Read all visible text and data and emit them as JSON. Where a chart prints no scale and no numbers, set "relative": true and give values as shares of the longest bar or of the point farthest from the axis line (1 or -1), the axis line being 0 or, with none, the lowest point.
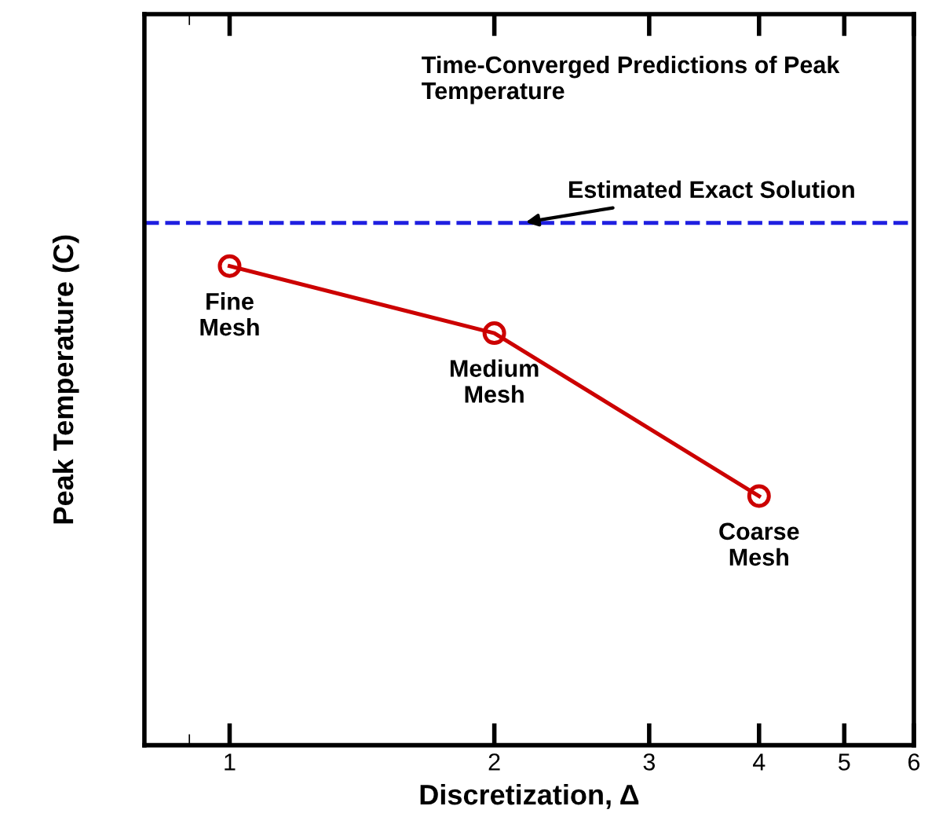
{
  "chart_data": {
    "type": "line",
    "title": "Time-Converged Predictions of Peak Temperature",
    "xlabel": "Discretization, Δ",
    "ylabel": "Peak Temperature (C)",
    "relative": true,
    "log": "x",
    "xlim": [
      0.8,
      6
    ],
    "xticks": [
      1,
      2,
      3,
      4,
      5,
      6
    ],
    "marker": "circle",
    "line_style": "solid",
    "grid": false,
    "series": [
      {
        "x": [
          1,
          2,
          4
        ],
        "values": [
          1,
          0.86,
          0.52
        ],
        "color": "#cc0000"
      }
    ],
    "ref_lines": [
      {
        "axis": "y",
        "value": 1.09,
        "label": "Estimated Exact Solution",
        "color": "#1f1fe0",
        "line_style": "dashed"
      }
    ],
    "annotations": [
      {
        "text": "Fine\nMesh",
        "x": 1,
        "y": 1
      },
      {
        "text": "Medium\nMesh",
        "x": 2,
        "y": 0.86
      },
      {
        "text": "Coarse\nMesh",
        "x": 4,
        "y": 0.52
      }
    ]
  }
}
